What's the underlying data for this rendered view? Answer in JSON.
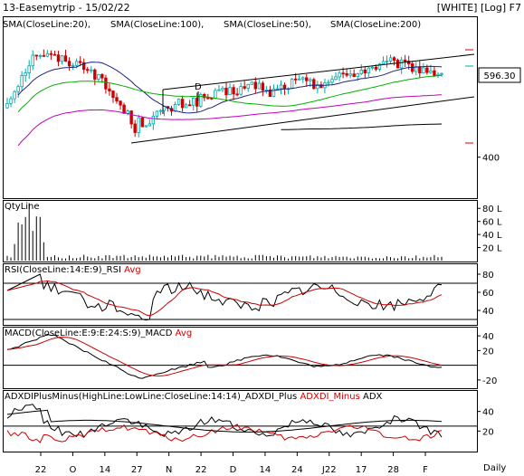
{
  "header": {
    "title": "13-Easemytrip - 15/02/22",
    "badges": "[WHITE] [Log] F7",
    "price_tag": "596.30"
  },
  "colors": {
    "sma20": "#202080",
    "sma100": "#c000c0",
    "sma50": "#00b000",
    "sma200": "#000000",
    "rsi": "#000000",
    "rsi_avg": "#cc0000",
    "macd": "#000000",
    "macd_avg": "#cc0000",
    "adx_plus": "#000000",
    "adx_minus": "#cc0000",
    "adx": "#000000",
    "up": "#00aaaa",
    "down": "#cc0000"
  },
  "chart_data": [
    {
      "type": "candlestick",
      "legend": [
        {
          "name": "SMA(CloseLine:20),",
          "color": "#202080"
        },
        {
          "name": "SMA(CloseLine:100),",
          "color": "#c000c0"
        },
        {
          "name": "SMA(CloseLine:50),",
          "color": "#00b000"
        },
        {
          "name": "SMA(CloseLine:200)",
          "color": "#000000"
        }
      ],
      "y_ticks": [
        {
          "value": 400,
          "label": "400"
        }
      ],
      "ylim": [
        330,
        780
      ],
      "scale": "log",
      "annotation": "D",
      "x_ticks": [
        "22",
        "O",
        "14",
        "27",
        "N",
        "22",
        "D",
        "14",
        "24",
        "J22",
        "17",
        "28",
        "F"
      ],
      "last_price": "596.30"
    },
    {
      "type": "bar",
      "title": "QtyLine",
      "y_ticks": [
        "80 L",
        "60 L",
        "40 L",
        "20 L"
      ],
      "ylim": [
        0,
        90
      ]
    },
    {
      "type": "line",
      "title": "RSI(CloseLine:14:E:9)_RSI",
      "title2": "Avg",
      "y_ticks": [
        "80",
        "60",
        "40"
      ],
      "ylim": [
        25,
        90
      ]
    },
    {
      "type": "line",
      "title": "MACD(CloseLine:E:9:E:24:S:9)_MACD",
      "title2": "Avg",
      "y_ticks": [
        "40",
        "20",
        "-20"
      ],
      "ylim": [
        -30,
        50
      ]
    },
    {
      "type": "line",
      "title": "ADXDIPlusMinus(HighLine:LowLine:CloseLine:14:14)_ADXDI_Plus",
      "title2": "ADXDI_Minus",
      "title3": "ADX",
      "y_ticks": [
        "40",
        "20"
      ],
      "ylim": [
        0,
        60
      ]
    }
  ],
  "footer": {
    "label": "Daily"
  }
}
